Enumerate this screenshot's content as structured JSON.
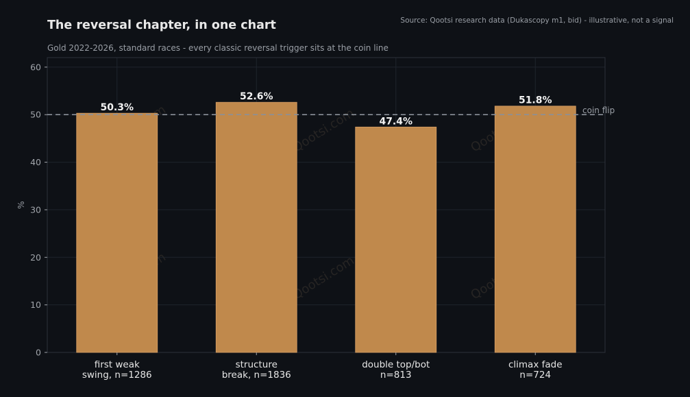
{
  "chart_data": {
    "type": "bar",
    "title": "The reversal chapter, in one chart",
    "subtitle": "Gold 2022-2026, standard races - every classic reversal trigger sits at the coin line",
    "source": "Source: Qootsi research data (Dukascopy m1, bid) - illustrative, not a signal",
    "ylabel": "%",
    "ylim": [
      0,
      62
    ],
    "yticks": [
      0,
      10,
      20,
      30,
      40,
      50,
      60
    ],
    "grid": true,
    "categories": [
      [
        "first weak",
        "swing, n=1286"
      ],
      [
        "structure",
        "break, n=1836"
      ],
      [
        "double top/bot",
        "n=813"
      ],
      [
        "climax fade",
        "n=724"
      ]
    ],
    "values": [
      50.3,
      52.6,
      47.4,
      51.8
    ],
    "value_labels": [
      "50.3%",
      "52.6%",
      "47.4%",
      "51.8%"
    ],
    "reference_line": {
      "y": 50,
      "label": "coin flip",
      "style": "dashed"
    },
    "watermark": "Qootsi.com",
    "colors": {
      "background": "#0e1116",
      "bar": "#c0894c",
      "bar_edge": "#d9a066",
      "grid": "#1f242c",
      "axis_frame": "#2c3139",
      "title": "#e8e8e8",
      "subtitle": "#9a9fa6",
      "tick_text": "#a0a4aa",
      "category_text": "#e6e6e6",
      "value_label": "#f2f2f2",
      "reference_line": "#8a9099",
      "watermark": "#3a3530"
    }
  }
}
